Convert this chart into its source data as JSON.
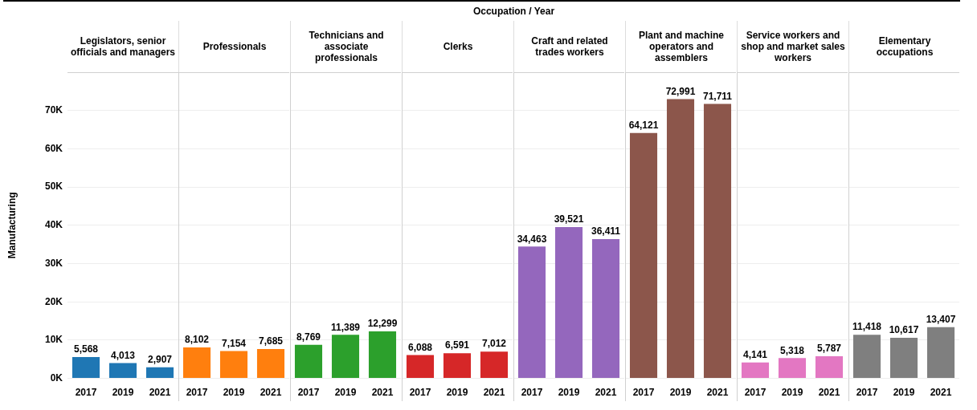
{
  "chart_data": [
    {
      "type": "bar",
      "title": "Legislators, senior officials and managers",
      "ylabel": "Manufacturing",
      "annotations": [
        "Occupation  /  Year"
      ],
      "categories": [
        "2017",
        "2019",
        "2021"
      ],
      "values": [
        5568,
        4013,
        2907
      ],
      "value_labels": [
        "5,568",
        "4,013",
        "2,907"
      ],
      "color": "#1f77b4",
      "ylim": [
        0,
        80000
      ],
      "yticks": [
        {
          "value": 0,
          "label": "0K"
        },
        {
          "value": 10000,
          "label": "10K"
        },
        {
          "value": 20000,
          "label": "20K"
        },
        {
          "value": 30000,
          "label": "30K"
        },
        {
          "value": 40000,
          "label": "40K"
        },
        {
          "value": 50000,
          "label": "50K"
        },
        {
          "value": 60000,
          "label": "60K"
        },
        {
          "value": 70000,
          "label": "70K"
        }
      ],
      "grid": "y"
    },
    {
      "type": "bar",
      "title": "Professionals",
      "categories": [
        "2017",
        "2019",
        "2021"
      ],
      "values": [
        8102,
        7154,
        7685
      ],
      "value_labels": [
        "8,102",
        "7,154",
        "7,685"
      ],
      "color": "#ff7f0e",
      "ylim": [
        0,
        80000
      ],
      "yticks": [
        0,
        10000,
        20000,
        30000,
        40000,
        50000,
        60000,
        70000
      ],
      "grid": "y",
      "tick_labels": "x"
    },
    {
      "type": "bar",
      "title": "Technicians and associate professionals",
      "categories": [
        "2017",
        "2019",
        "2021"
      ],
      "values": [
        8769,
        11389,
        12299
      ],
      "value_labels": [
        "8,769",
        "11,389",
        "12,299"
      ],
      "color": "#2ca02c",
      "ylim": [
        0,
        80000
      ],
      "yticks": [
        0,
        10000,
        20000,
        30000,
        40000,
        50000,
        60000,
        70000
      ],
      "grid": "y",
      "tick_labels": "x"
    },
    {
      "type": "bar",
      "title": "Clerks",
      "categories": [
        "2017",
        "2019",
        "2021"
      ],
      "values": [
        6088,
        6591,
        7012
      ],
      "value_labels": [
        "6,088",
        "6,591",
        "7,012"
      ],
      "color": "#d62728",
      "ylim": [
        0,
        80000
      ],
      "yticks": [
        0,
        10000,
        20000,
        30000,
        40000,
        50000,
        60000,
        70000
      ],
      "grid": "y",
      "tick_labels": "x"
    },
    {
      "type": "bar",
      "title": "Craft and related trades workers",
      "categories": [
        "2017",
        "2019",
        "2021"
      ],
      "values": [
        34463,
        39521,
        36411
      ],
      "value_labels": [
        "34,463",
        "39,521",
        "36,411"
      ],
      "color": "#9467bd",
      "ylim": [
        0,
        80000
      ],
      "yticks": [
        0,
        10000,
        20000,
        30000,
        40000,
        50000,
        60000,
        70000
      ],
      "grid": "y",
      "tick_labels": "x"
    },
    {
      "type": "bar",
      "title": "Plant and machine operators and assemblers",
      "categories": [
        "2017",
        "2019",
        "2021"
      ],
      "values": [
        64121,
        72991,
        71711
      ],
      "value_labels": [
        "64,121",
        "72,991",
        "71,711"
      ],
      "color": "#8c564b",
      "ylim": [
        0,
        80000
      ],
      "yticks": [
        0,
        10000,
        20000,
        30000,
        40000,
        50000,
        60000,
        70000
      ],
      "grid": "y",
      "tick_labels": "x"
    },
    {
      "type": "bar",
      "title": "Service workers and shop and market sales workers",
      "categories": [
        "2017",
        "2019",
        "2021"
      ],
      "values": [
        4141,
        5318,
        5787
      ],
      "value_labels": [
        "4,141",
        "5,318",
        "5,787"
      ],
      "color": "#e377c2",
      "ylim": [
        0,
        80000
      ],
      "yticks": [
        0,
        10000,
        20000,
        30000,
        40000,
        50000,
        60000,
        70000
      ],
      "grid": "y",
      "tick_labels": "x"
    },
    {
      "type": "bar",
      "title": "Elementary occupations",
      "categories": [
        "2017",
        "2019",
        "2021"
      ],
      "values": [
        11418,
        10617,
        13407
      ],
      "value_labels": [
        "11,418",
        "10,617",
        "13,407"
      ],
      "color": "#7f7f7f",
      "ylim": [
        0,
        80000
      ],
      "yticks": [
        0,
        10000,
        20000,
        30000,
        40000,
        50000,
        60000,
        70000
      ],
      "grid": "y",
      "tick_labels": "x"
    }
  ]
}
